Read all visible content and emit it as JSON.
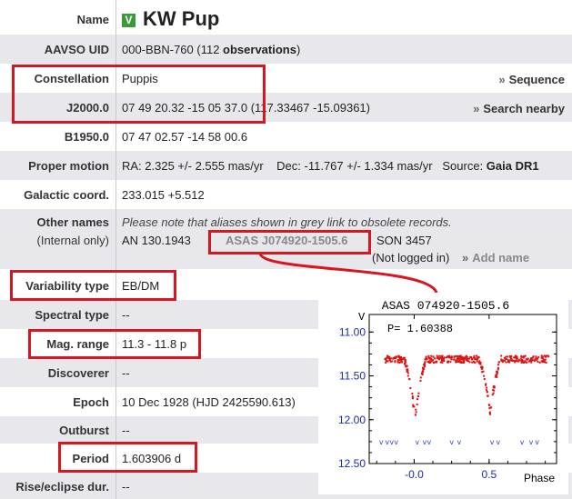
{
  "rows": {
    "name": {
      "label": "Name",
      "badge": "V",
      "value": "KW Pup"
    },
    "uid": {
      "label": "AAVSO UID",
      "value_prefix": "000-BBN-760 (112 ",
      "value_bold": "observations",
      "value_suffix": ")"
    },
    "constellation": {
      "label": "Constellation",
      "value": "Puppis",
      "link": "Sequence"
    },
    "j2000": {
      "label": "J2000.0",
      "value": "07 49 20.32 -15 05 37.0",
      "extra": "(117.33467 -15.09361)",
      "link": "Search nearby"
    },
    "b1950": {
      "label": "B1950.0",
      "value": "07 47 02.57 -14 58 00.6"
    },
    "proper_motion": {
      "label": "Proper motion",
      "value": "RA: 2.325 +/- 2.555 mas/yr    Dec: -11.767 +/- 1.334 mas/yr   Source: ",
      "source": "Gaia DR1"
    },
    "galactic": {
      "label": "Galactic coord.",
      "value": "233.015 +5.512"
    },
    "other_names": {
      "label": "Other names",
      "sublabel": "(Internal only)",
      "note": "Please note that aliases shown in grey link to obsolete records.",
      "alias1": "AN 130.1943",
      "alias2": "ASAS J074920-1505.6",
      "alias3": "SON 3457",
      "not_logged": "(Not logged in)",
      "add_name": "Add name"
    },
    "variability": {
      "label": "Variability type",
      "value": "EB/DM"
    },
    "spectral": {
      "label": "Spectral type",
      "value": "--"
    },
    "mag_range": {
      "label": "Mag. range",
      "value": "11.3 - 11.8 p"
    },
    "discoverer": {
      "label": "Discoverer",
      "value": "--"
    },
    "epoch": {
      "label": "Epoch",
      "value": "10 Dec 1928 (HJD 2425590.613)"
    },
    "outburst": {
      "label": "Outburst",
      "value": "--"
    },
    "period": {
      "label": "Period",
      "value": "1.603906 d"
    },
    "rise": {
      "label": "Rise/eclipse dur.",
      "value": "--"
    }
  },
  "chart_data": {
    "type": "scatter",
    "title": "ASAS 074920-1505.6",
    "annotation": "P= 1.60388",
    "ylabel": "V",
    "xlabel": "Phase",
    "ylim": [
      12.5,
      10.8
    ],
    "xlim": [
      -0.3,
      0.95
    ],
    "yticks": [
      "11.00",
      "11.50",
      "12.00",
      "12.50"
    ],
    "xticks": [
      "-0.0",
      "0.5"
    ],
    "xtick_values": [
      0.0,
      0.5
    ],
    "ytick_values": [
      11.0,
      11.5,
      12.0,
      12.5
    ],
    "color": "#e01010",
    "eclipses": [
      {
        "phase": 0.0,
        "depth": 11.95
      },
      {
        "phase": 0.5,
        "depth": 11.9
      },
      {
        "phase": 1.0,
        "depth": 11.95
      }
    ],
    "max_level": 11.3,
    "limit_points": {
      "mag": 12.25,
      "phases": [
        -0.22,
        -0.18,
        -0.15,
        -0.12,
        0.02,
        0.07,
        0.1,
        0.25,
        0.3,
        0.52,
        0.56,
        0.72,
        0.78,
        0.82
      ]
    }
  }
}
